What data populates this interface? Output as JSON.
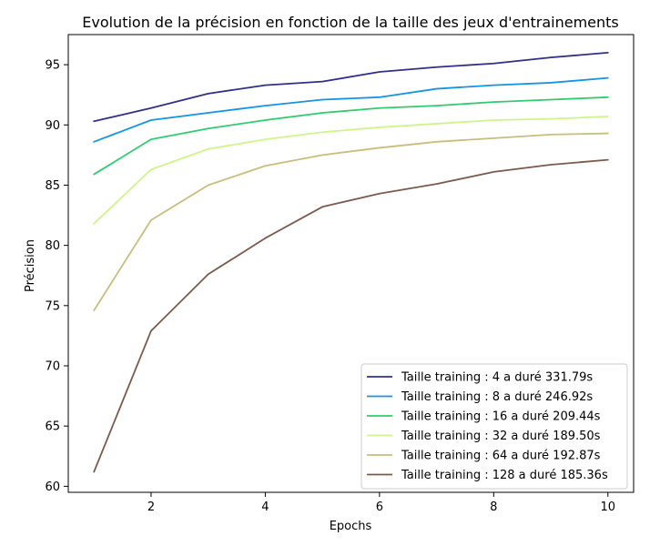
{
  "chart_data": {
    "type": "line",
    "title": "Evolution de la précision en fonction de la taille des jeux d'entrainements",
    "xlabel": "Epochs",
    "ylabel": "Précision",
    "x": [
      1,
      2,
      3,
      4,
      5,
      6,
      7,
      8,
      9,
      10
    ],
    "xlim": [
      0.55,
      10.45
    ],
    "ylim": [
      59.5,
      97.5
    ],
    "xticks": [
      2,
      4,
      6,
      8,
      10
    ],
    "yticks": [
      60,
      65,
      70,
      75,
      80,
      85,
      90,
      95
    ],
    "grid": false,
    "legend_position": "lower-right",
    "series": [
      {
        "name": "Taille training : 4 a duré 331.79s",
        "color": "#30308a",
        "values": [
          90.3,
          91.4,
          92.6,
          93.3,
          93.6,
          94.4,
          94.8,
          95.1,
          95.6,
          96.0
        ]
      },
      {
        "name": "Taille training : 8 a duré 246.92s",
        "color": "#1595e0",
        "values": [
          88.6,
          90.4,
          91.0,
          91.6,
          92.1,
          92.3,
          93.0,
          93.3,
          93.5,
          93.9
        ]
      },
      {
        "name": "Taille training : 16 a duré 209.44s",
        "color": "#2ecc6f",
        "values": [
          85.9,
          88.8,
          89.7,
          90.4,
          91.0,
          91.4,
          91.6,
          91.9,
          92.1,
          92.3
        ]
      },
      {
        "name": "Taille training : 32 a duré 189.50s",
        "color": "#cff58a",
        "values": [
          81.8,
          86.3,
          88.0,
          88.8,
          89.4,
          89.8,
          90.1,
          90.4,
          90.5,
          90.7
        ]
      },
      {
        "name": "Taille training : 64 a duré 192.87s",
        "color": "#c9bd7d",
        "values": [
          74.6,
          82.1,
          85.0,
          86.6,
          87.5,
          88.1,
          88.6,
          88.9,
          89.2,
          89.3
        ]
      },
      {
        "name": "Taille training : 128 a duré 185.36s",
        "color": "#7b5a4d",
        "values": [
          61.2,
          72.9,
          77.6,
          80.6,
          83.2,
          84.3,
          85.1,
          86.1,
          86.7,
          87.1
        ]
      }
    ]
  }
}
